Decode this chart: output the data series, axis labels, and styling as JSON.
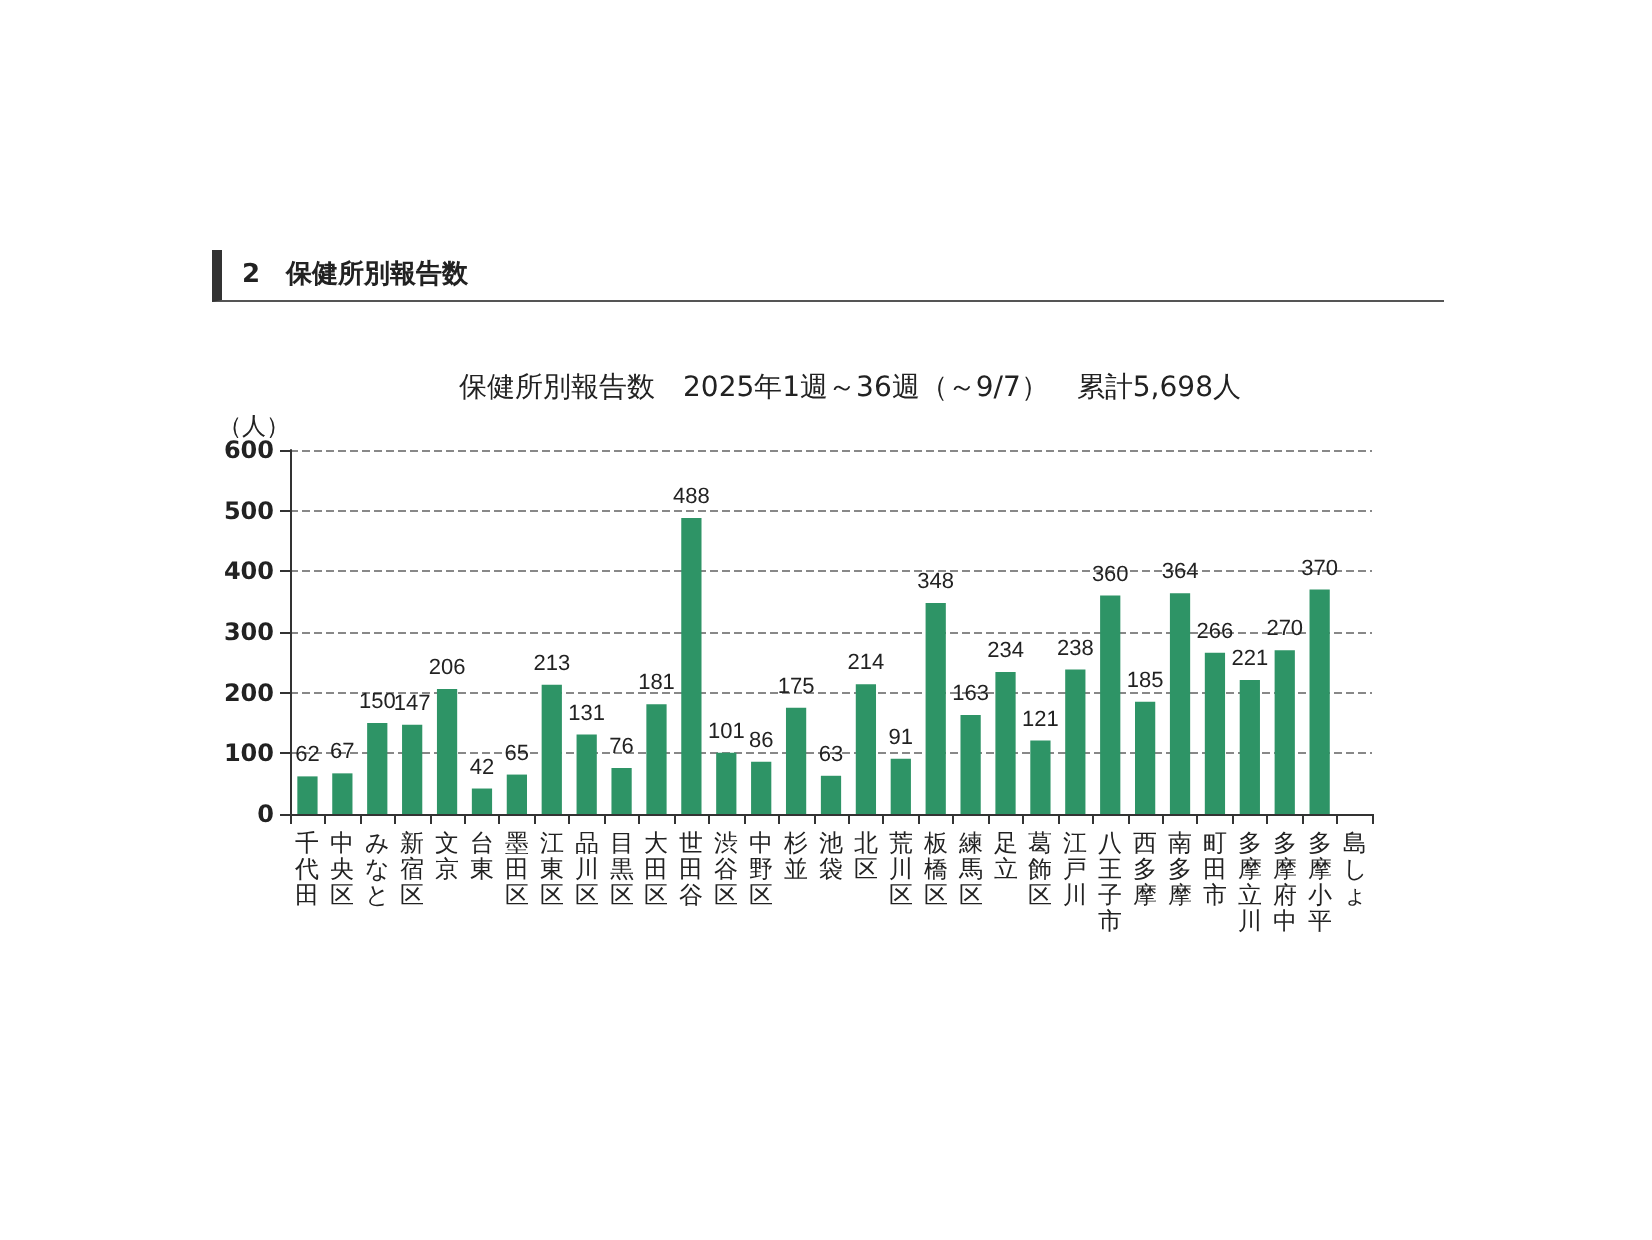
{
  "chart_data": {
    "type": "bar",
    "title": "保健所別報告数　2025年1週～36週（～9/7）　累計5,698人",
    "ylabel": "（人）",
    "annotations": [
      "2　保健所別報告数"
    ],
    "categories": [
      "千代田",
      "中央区",
      "みなと",
      "新宿区",
      "文京",
      "台東",
      "墨田区",
      "江東区",
      "品川区",
      "目黒区",
      "大田区",
      "世田谷",
      "渋谷区",
      "中野区",
      "杉並",
      "池袋",
      "北区",
      "荒川区",
      "板橋区",
      "練馬区",
      "足立",
      "葛飾区",
      "江戸川",
      "八王子市",
      "西多摩",
      "南多摩",
      "町田市",
      "多摩立川",
      "多摩府中",
      "多摩小平",
      "島しょ"
    ],
    "values": [
      62,
      67,
      150,
      147,
      206,
      42,
      65,
      213,
      131,
      76,
      181,
      488,
      101,
      86,
      175,
      63,
      214,
      91,
      348,
      163,
      234,
      121,
      238,
      360,
      185,
      364,
      266,
      221,
      270,
      370,
      0
    ],
    "value_labels": [
      "62",
      "67",
      "150",
      "147",
      "206",
      "42",
      "65",
      "213",
      "131",
      "76",
      "181",
      "488",
      "101",
      "86",
      "175",
      "63",
      "214",
      "91",
      "348",
      "163",
      "234",
      "121",
      "238",
      "360",
      "185",
      "364",
      "266",
      "221",
      "270",
      "370",
      null
    ],
    "color": "#2e9466",
    "ylim": [
      0,
      600
    ],
    "yticks": [
      0,
      100,
      200,
      300,
      400,
      500,
      600
    ],
    "grid": "y"
  }
}
